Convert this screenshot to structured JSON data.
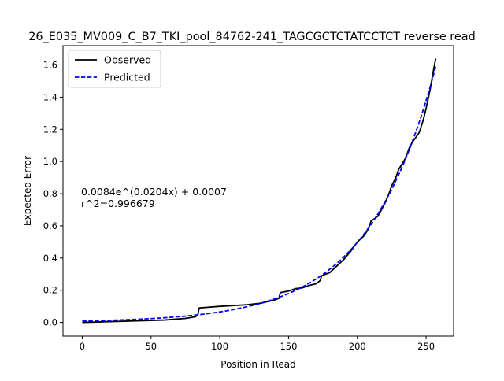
{
  "chart_data": {
    "type": "line",
    "title": "26_E035_MV009_C_B7_TKI_pool_84762-241_TAGCGCTCTATCCTCT reverse read",
    "xlabel": "Position in Read",
    "ylabel": "Expected Error",
    "xlim": [
      -14,
      270
    ],
    "ylim": [
      -0.085,
      1.72
    ],
    "xticks": [
      0,
      50,
      100,
      150,
      200,
      250
    ],
    "xtick_labels": [
      "0",
      "50",
      "100",
      "150",
      "200",
      "250"
    ],
    "yticks": [
      0.0,
      0.2,
      0.4,
      0.6,
      0.8,
      1.0,
      1.2,
      1.4,
      1.6
    ],
    "ytick_labels": [
      "0.0",
      "0.2",
      "0.4",
      "0.6",
      "0.8",
      "1.0",
      "1.2",
      "1.4",
      "1.6"
    ],
    "grid": false,
    "legend_position": "top-left",
    "annotation": [
      "0.0084e^(0.0204x) + 0.0007",
      "r^2=0.996679"
    ],
    "series": [
      {
        "name": "Observed",
        "color": "#000000",
        "style": "solid",
        "x": [
          0,
          20,
          40,
          60,
          75,
          82,
          84,
          85,
          100,
          120,
          130,
          140,
          143,
          144,
          150,
          155,
          160,
          165,
          170,
          173,
          174,
          180,
          185,
          190,
          195,
          200,
          205,
          208,
          210,
          215,
          220,
          223,
          225,
          228,
          230,
          235,
          238,
          240,
          245,
          248,
          250,
          253,
          255,
          257
        ],
        "y": [
          0.0,
          0.005,
          0.01,
          0.015,
          0.025,
          0.035,
          0.045,
          0.09,
          0.1,
          0.11,
          0.12,
          0.14,
          0.15,
          0.185,
          0.195,
          0.21,
          0.215,
          0.23,
          0.24,
          0.26,
          0.29,
          0.31,
          0.35,
          0.39,
          0.44,
          0.5,
          0.54,
          0.58,
          0.63,
          0.66,
          0.74,
          0.8,
          0.85,
          0.9,
          0.95,
          1.02,
          1.09,
          1.12,
          1.18,
          1.26,
          1.33,
          1.45,
          1.55,
          1.64
        ]
      },
      {
        "name": "Predicted",
        "color": "#0000ff",
        "style": "dashed",
        "fit": {
          "a": 0.0084,
          "b": 0.0204,
          "c": 0.0007
        },
        "x_range": [
          0,
          257
        ]
      }
    ]
  }
}
